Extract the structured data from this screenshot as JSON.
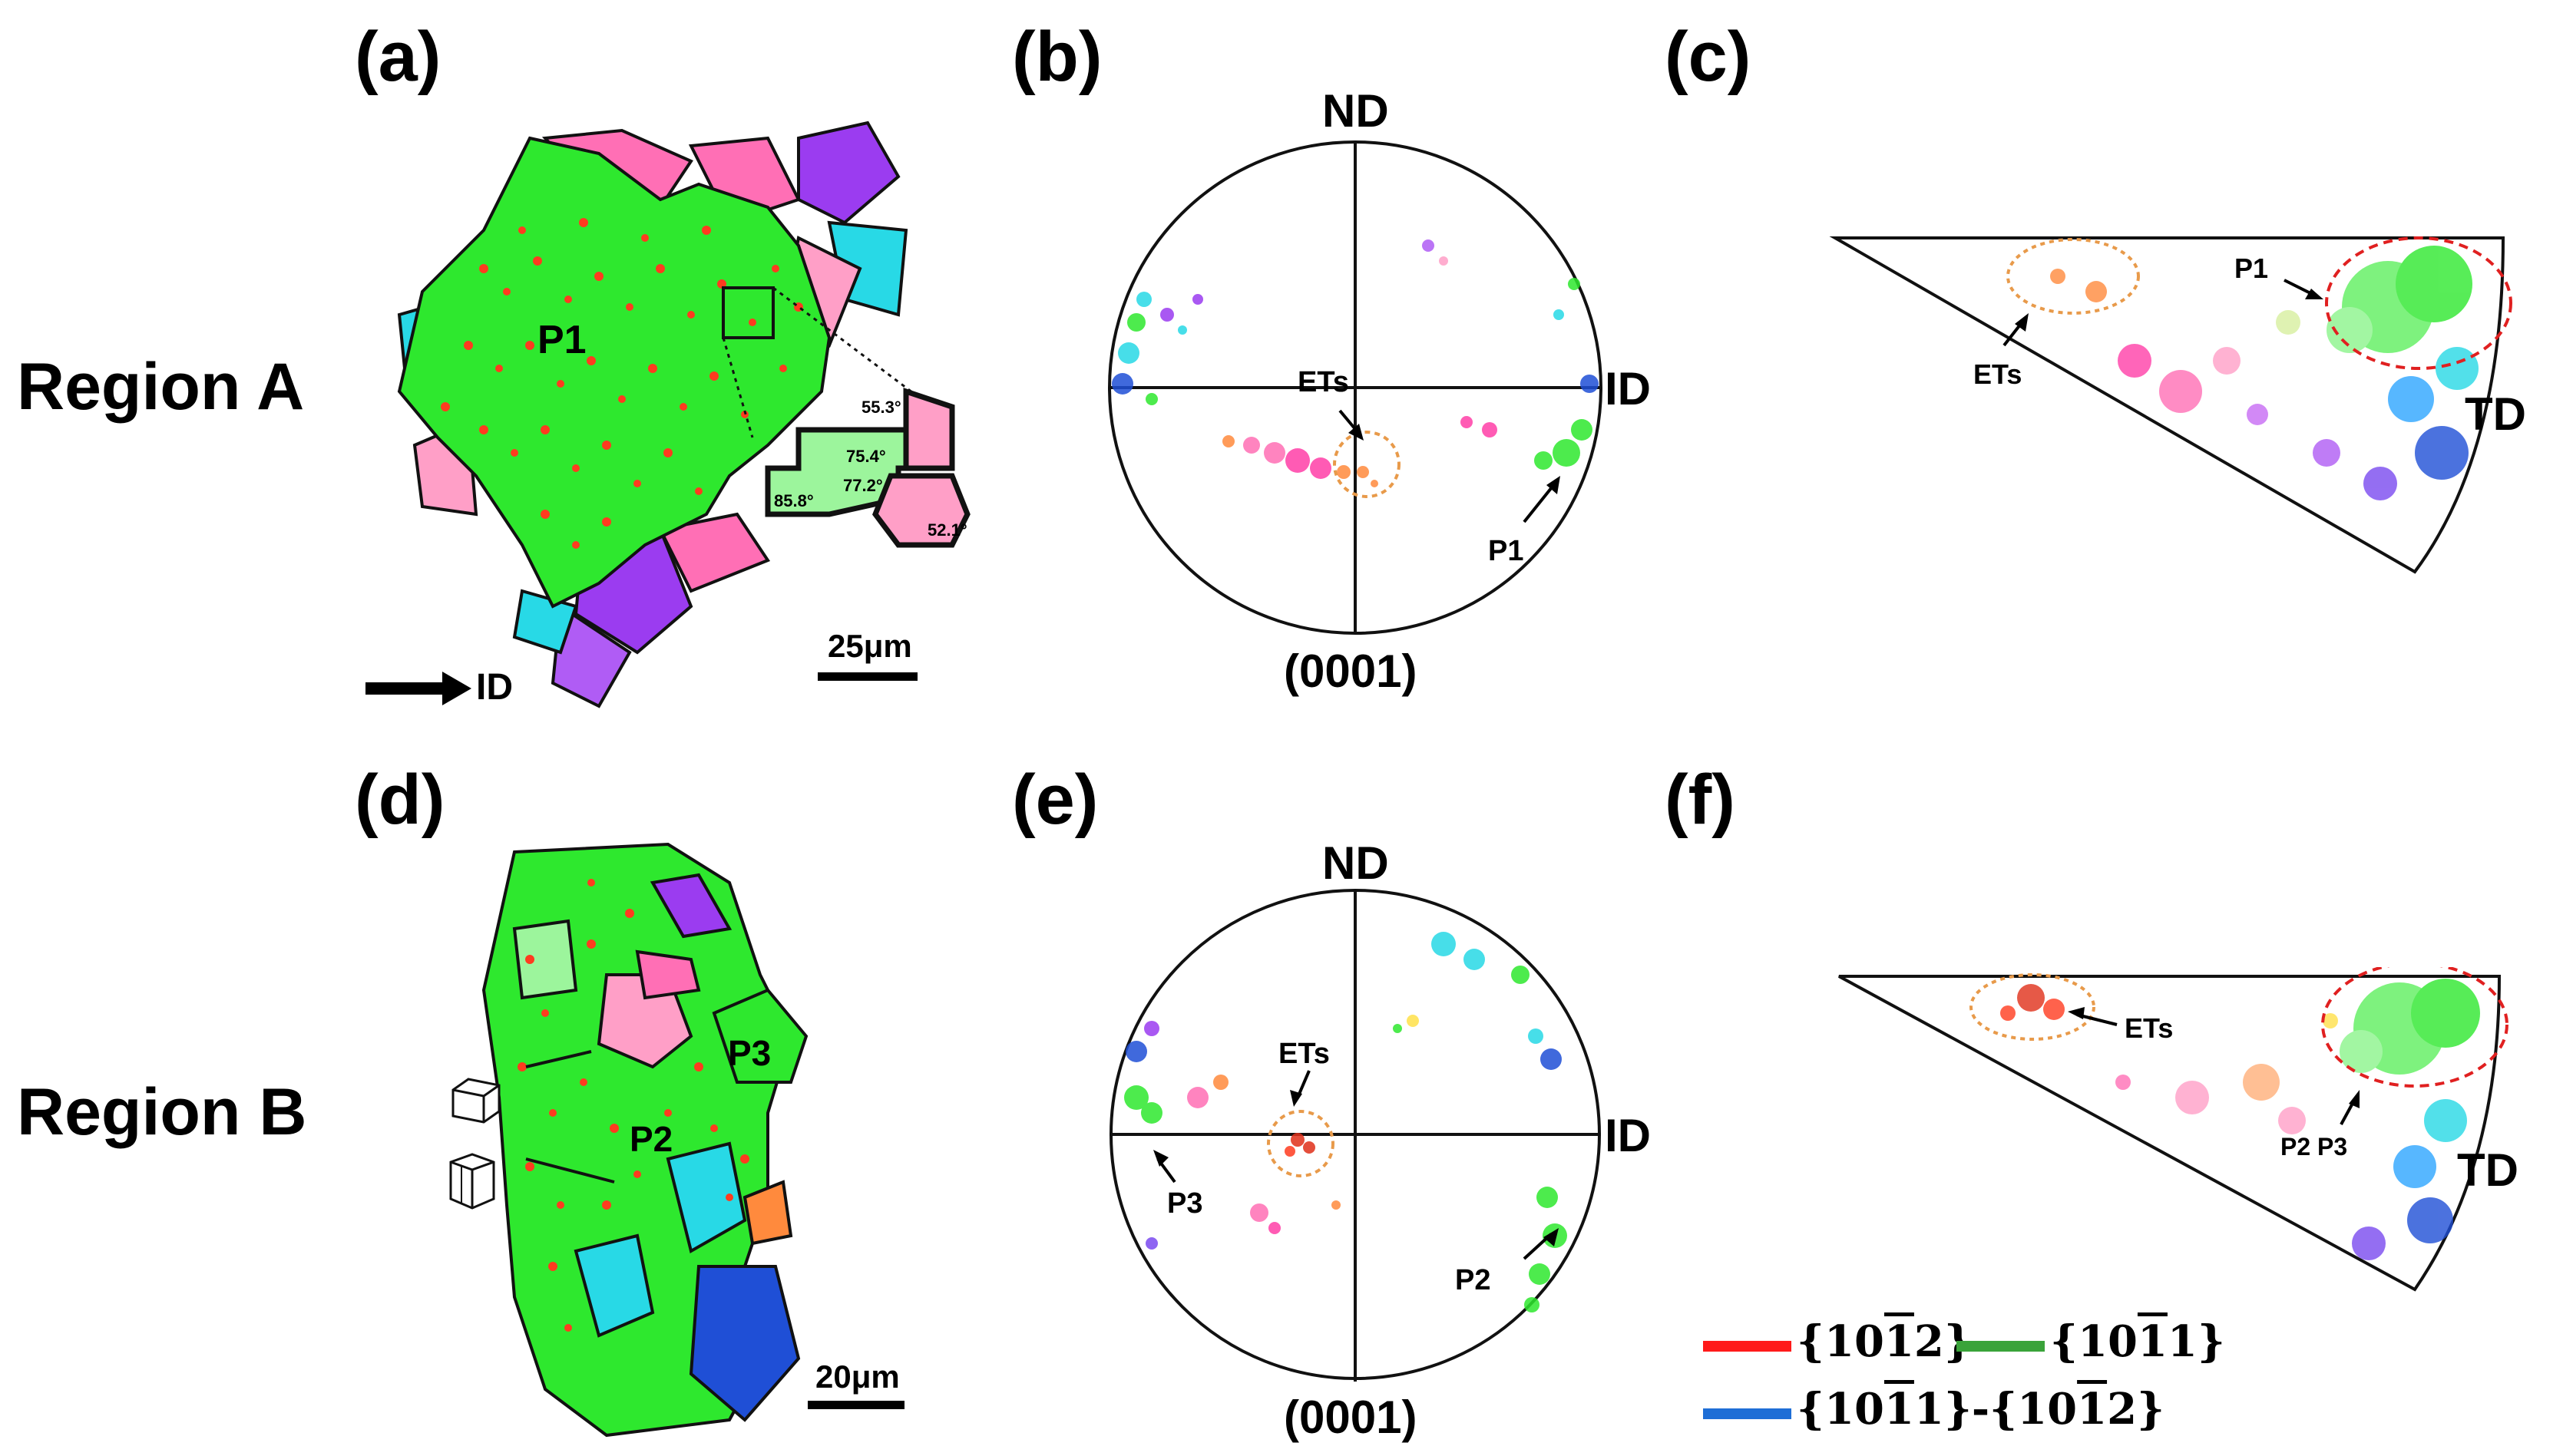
{
  "panels": {
    "a": "(a)",
    "b": "(b)",
    "c": "(c)",
    "d": "(d)",
    "e": "(e)",
    "f": "(f)"
  },
  "regions": {
    "a": "Region A",
    "b": "Region B"
  },
  "map_a": {
    "grain_label": "P1",
    "direction_label": "ID",
    "scale_label": "25μm",
    "inset_angles": [
      "55.3°",
      "75.4°",
      "77.2°",
      "85.8°",
      "52.1°"
    ]
  },
  "map_d": {
    "grain_labels": [
      "P2",
      "P3"
    ],
    "scale_label": "20μm"
  },
  "pole_figure_b": {
    "top_label": "ND",
    "right_label": "ID",
    "bottom_label": "(0001)",
    "annotations": [
      "ETs",
      "P1"
    ]
  },
  "pole_figure_e": {
    "top_label": "ND",
    "right_label": "ID",
    "bottom_label": "(0001)",
    "annotations": [
      "ETs",
      "P3",
      "P2"
    ]
  },
  "ipf_c": {
    "corner_label": "TD",
    "annotations": [
      "P1",
      "ETs"
    ]
  },
  "ipf_f": {
    "corner_label": "TD",
    "annotations": [
      "ETs",
      "P2 P3"
    ]
  },
  "legend": {
    "items": [
      {
        "prefix": "{10",
        "bar": "1",
        "suffix": "2}",
        "color": "#ff1a1a"
      },
      {
        "prefix": "{10",
        "bar": "1",
        "suffix": "1}",
        "color": "#3aa33a"
      }
    ],
    "combined": {
      "p1": "{10",
      "b1": "1",
      "s1": "1}-{10",
      "b2": "1",
      "s2": "2}",
      "color": "#1e6ed6"
    }
  },
  "colors": {
    "green": "#2ee82e",
    "red_twin": "#ff3b1f",
    "pink": "#ff6fb5",
    "blue": "#1f4fd6",
    "cyan": "#28d9e6",
    "purple": "#9b3cf0",
    "orange": "#ff8a3d",
    "circle_orange": "#e89a4a",
    "circle_red": "#e02020"
  }
}
